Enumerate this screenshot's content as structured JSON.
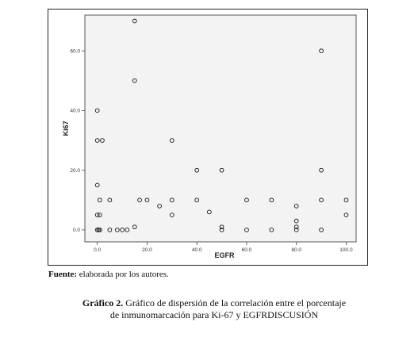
{
  "note": {
    "label": "Fuente:",
    "text": " elaborada por los autores."
  },
  "caption": {
    "label": "Gráfico 2.",
    "line1": " Gráfico de dispersión de la correlación entre el porcentaje",
    "line2": "de inmunomarcación para Ki-67 y EGFRDISCUSIÓN"
  },
  "chart_data": {
    "type": "scatter",
    "title": "",
    "xlabel": "EGFR",
    "ylabel": "Ki67",
    "xlim": [
      -5,
      104
    ],
    "ylim": [
      -4,
      72
    ],
    "xticks": [
      0,
      20,
      40,
      60,
      80,
      100
    ],
    "yticks": [
      0,
      20,
      40,
      60
    ],
    "xtick_labels": [
      "0.0",
      "20.0",
      "40.0",
      "60.0",
      "80.0",
      "100.0"
    ],
    "ytick_labels": [
      "0.0",
      "20.0",
      "40.0",
      "60.0"
    ],
    "grid": false,
    "points": [
      [
        0,
        0
      ],
      [
        0.5,
        0
      ],
      [
        1,
        0
      ],
      [
        0,
        5
      ],
      [
        1,
        5
      ],
      [
        1,
        10
      ],
      [
        0,
        15
      ],
      [
        0,
        30
      ],
      [
        2,
        30
      ],
      [
        0,
        40
      ],
      [
        5,
        0
      ],
      [
        5,
        10
      ],
      [
        8,
        0
      ],
      [
        10,
        0
      ],
      [
        12,
        0
      ],
      [
        15,
        1
      ],
      [
        15,
        50
      ],
      [
        15,
        70
      ],
      [
        17,
        10
      ],
      [
        20,
        10
      ],
      [
        25,
        8
      ],
      [
        30,
        5
      ],
      [
        30,
        10
      ],
      [
        30,
        30
      ],
      [
        40,
        10
      ],
      [
        40,
        20
      ],
      [
        45,
        6
      ],
      [
        50,
        0
      ],
      [
        50,
        1
      ],
      [
        50,
        20
      ],
      [
        60,
        0
      ],
      [
        60,
        10
      ],
      [
        70,
        0
      ],
      [
        70,
        10
      ],
      [
        80,
        0
      ],
      [
        80,
        1
      ],
      [
        80,
        3
      ],
      [
        80,
        8
      ],
      [
        90,
        0
      ],
      [
        90,
        10
      ],
      [
        90,
        20
      ],
      [
        90,
        60
      ],
      [
        100,
        5
      ],
      [
        100,
        10
      ]
    ]
  }
}
